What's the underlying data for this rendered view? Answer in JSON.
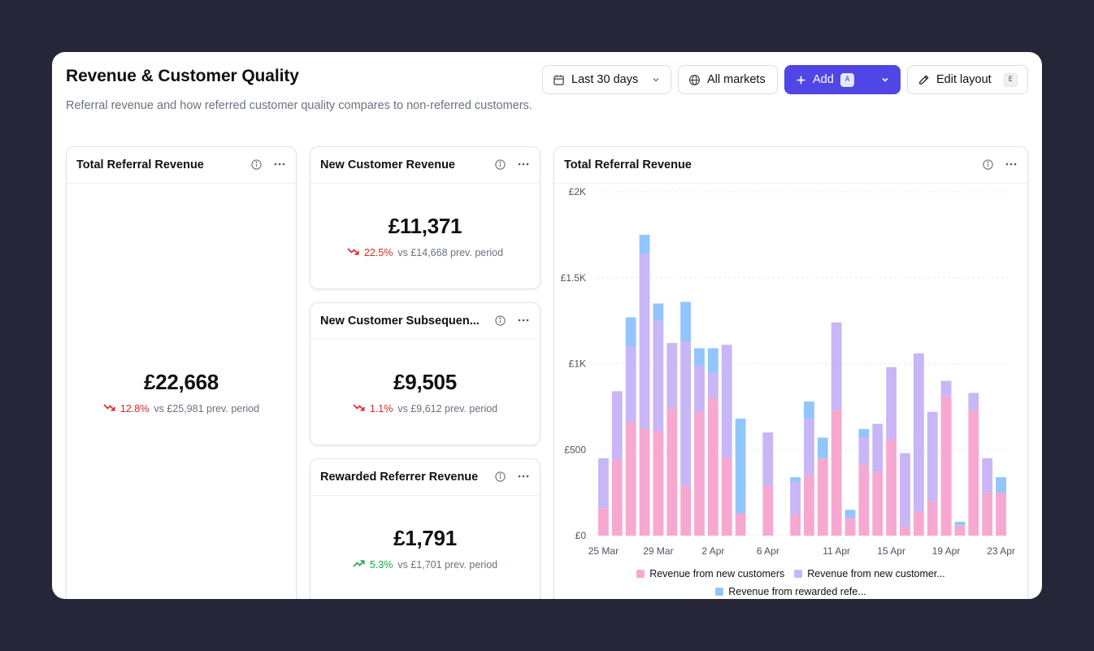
{
  "page": {
    "title": "Revenue & Customer Quality",
    "subtitle": "Referral revenue and how referred customer quality compares to non-referred customers."
  },
  "toolbar": {
    "date_range": "Last 30 days",
    "date_icon": "calendar-icon",
    "markets": "All markets",
    "markets_icon": "globe-icon",
    "add_label": "Add",
    "add_shortcut": "A",
    "edit_label": "Edit layout",
    "edit_shortcut": "E",
    "accent_color": "#4f46e5"
  },
  "cards": {
    "total_referral": {
      "title": "Total Referral Revenue",
      "value": "£22,668",
      "change_pct": "12.8%",
      "trend": "down",
      "prev": "vs £25,981 prev. period"
    },
    "new_customer": {
      "title": "New Customer Revenue",
      "value": "£11,371",
      "change_pct": "22.5%",
      "trend": "down",
      "prev": "vs £14,668 prev. period"
    },
    "subsequent": {
      "title": "New Customer Subsequen...",
      "value": "£9,505",
      "change_pct": "1.1%",
      "trend": "down",
      "prev": "vs £9,612 prev. period"
    },
    "rewarded": {
      "title": "Rewarded Referrer Revenue",
      "value": "£1,791",
      "change_pct": "5.3%",
      "trend": "up",
      "prev": "vs £1,701 prev. period"
    },
    "chart": {
      "title": "Total Referral Revenue"
    }
  },
  "colors": {
    "down": "#dc2626",
    "up": "#16a34a",
    "series_new": "#f7a8d0",
    "series_subsequent": "#c8b6f6",
    "series_rewarded": "#93c5fd"
  },
  "chart_data": {
    "type": "bar",
    "stacked": true,
    "ylim": [
      0,
      2000
    ],
    "yticks": [
      0,
      500,
      1000,
      1500,
      2000
    ],
    "ytick_labels": [
      "£0",
      "£500",
      "£1K",
      "£1.5K",
      "£2K"
    ],
    "x_tick_labels": [
      "25 Mar",
      "29 Mar",
      "2 Apr",
      "6 Apr",
      "11 Apr",
      "15 Apr",
      "19 Apr",
      "23 Apr"
    ],
    "x_tick_indices": [
      0,
      4,
      8,
      12,
      17,
      21,
      25,
      29
    ],
    "grid": true,
    "legend_position": "bottom",
    "series": [
      {
        "name": "Revenue from new customers",
        "color": "#f7a8d0",
        "values": [
          160,
          440,
          660,
          620,
          610,
          740,
          290,
          720,
          800,
          450,
          130,
          0,
          290,
          0,
          120,
          350,
          450,
          730,
          100,
          410,
          370,
          560,
          50,
          140,
          200,
          810,
          60,
          730,
          250,
          250
        ]
      },
      {
        "name": "Revenue from new customer...",
        "color": "#c8b6f6",
        "values": [
          290,
          400,
          440,
          1020,
          640,
          380,
          840,
          270,
          150,
          660,
          0,
          0,
          310,
          0,
          190,
          330,
          0,
          510,
          0,
          160,
          280,
          420,
          430,
          920,
          520,
          90,
          0,
          100,
          200,
          0
        ]
      },
      {
        "name": "Revenue from rewarded refe...",
        "color": "#93c5fd",
        "values": [
          0,
          0,
          170,
          110,
          100,
          0,
          230,
          100,
          140,
          0,
          550,
          0,
          0,
          0,
          30,
          100,
          120,
          0,
          50,
          50,
          0,
          0,
          0,
          0,
          0,
          0,
          20,
          0,
          0,
          90
        ]
      }
    ]
  }
}
